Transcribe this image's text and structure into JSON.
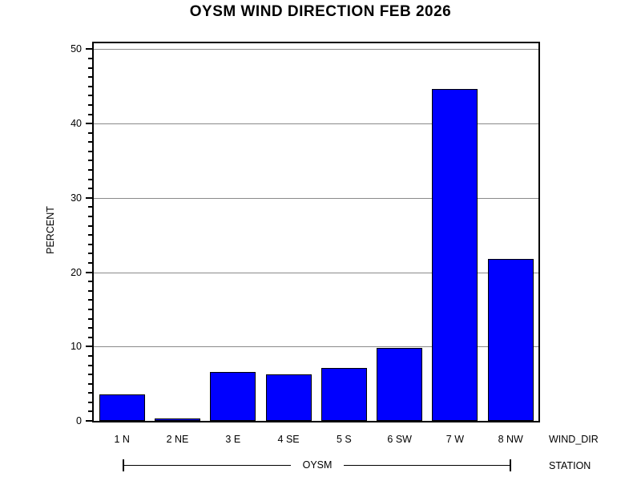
{
  "title": "OYSM WIND DIRECTION FEB 2026",
  "chart_data": {
    "type": "bar",
    "title": "OYSM WIND DIRECTION FEB 2026",
    "categories": [
      "1 N",
      "2 NE",
      "3 E",
      "4 SE",
      "5 S",
      "6 SW",
      "7 W",
      "8 NW"
    ],
    "values": [
      3.6,
      0.3,
      6.6,
      6.3,
      7.1,
      9.8,
      44.6,
      21.8
    ],
    "xlabel": "WIND_DIR",
    "ylabel": "PERCENT",
    "ylim": [
      0,
      51
    ],
    "yticks": [
      0,
      10,
      20,
      30,
      40,
      50
    ],
    "minor_ticks_per_interval": 7,
    "grid": "horizontal-major-gridlines",
    "legend": "none",
    "group_axis": {
      "label": "STATION",
      "group": "OYSM"
    },
    "colors": {
      "bar_fill": "#0000ff",
      "bar_border": "#000000",
      "gridline": "#8a8a8a",
      "axis": "#000000",
      "background": "#ffffff"
    }
  }
}
